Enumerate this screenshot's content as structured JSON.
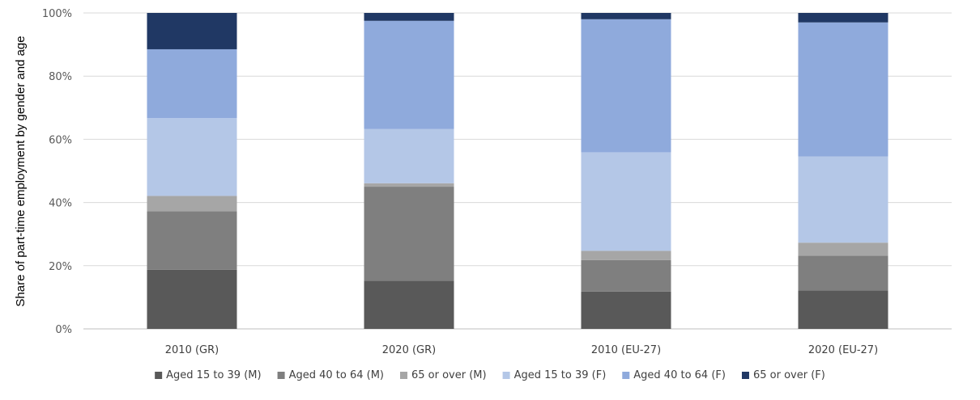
{
  "chart_data": {
    "type": "bar",
    "stacked": true,
    "ylabel": "Share of part-time employment by gender and age",
    "xlabel": "",
    "ylim": [
      0,
      100
    ],
    "y_ticks": [
      "0%",
      "20%",
      "40%",
      "60%",
      "80%",
      "100%"
    ],
    "grid": true,
    "legend_position": "bottom",
    "categories": [
      "2010 (GR)",
      "2020 (GR)",
      "2010 (EU-27)",
      "2020 (EU-27)"
    ],
    "series": [
      {
        "name": "Aged 15 to 39 (M)",
        "color": "#595959",
        "values": [
          18.7,
          15.2,
          11.8,
          12.2
        ]
      },
      {
        "name": "Aged 40 to 64 (M)",
        "color": "#7f7f7f",
        "values": [
          18.5,
          29.8,
          10.0,
          11.0
        ]
      },
      {
        "name": "65 or over (M)",
        "color": "#a6a6a6",
        "values": [
          4.9,
          1.1,
          2.9,
          4.1
        ]
      },
      {
        "name": "Aged 15 to 39 (F)",
        "color": "#b4c7e7",
        "values": [
          24.6,
          17.2,
          31.2,
          27.3
        ]
      },
      {
        "name": "Aged 40 to 64 (F)",
        "color": "#8faadc",
        "values": [
          21.8,
          34.2,
          42.1,
          42.4
        ]
      },
      {
        "name": "65 or over (F)",
        "color": "#203864",
        "values": [
          11.5,
          2.5,
          2.0,
          3.0
        ]
      }
    ]
  }
}
